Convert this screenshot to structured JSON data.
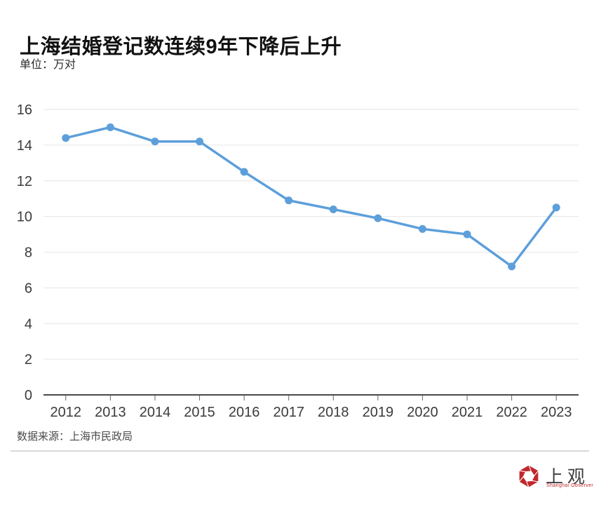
{
  "header": {
    "title": "上海结婚登记数连续9年下降后上升",
    "unit_label": "单位：万对"
  },
  "footer": {
    "source": "数据来源：上海市民政局",
    "logo_text": "上观",
    "logo_subtext": "Shanghai Observer",
    "logo_color": "#C1272D"
  },
  "chart_data": {
    "type": "line",
    "title": "上海结婚登记数连续9年下降后上升",
    "categories": [
      "2012",
      "2013",
      "2014",
      "2015",
      "2016",
      "2017",
      "2018",
      "2019",
      "2020",
      "2021",
      "2022",
      "2023"
    ],
    "values": [
      14.4,
      15.0,
      14.2,
      14.2,
      12.5,
      10.9,
      10.4,
      9.9,
      9.3,
      9.0,
      7.2,
      10.5
    ],
    "xlabel": "",
    "ylabel": "万对",
    "ylim": [
      0,
      16
    ],
    "yticks": [
      0,
      2,
      4,
      6,
      8,
      10,
      12,
      14,
      16
    ],
    "grid": true,
    "legend": "none",
    "line_color": "#5D9FDA",
    "grid_color": "#e6e6e6",
    "axis_color": "#4a4a4a",
    "tick_label_color": "#3b3b3b"
  }
}
